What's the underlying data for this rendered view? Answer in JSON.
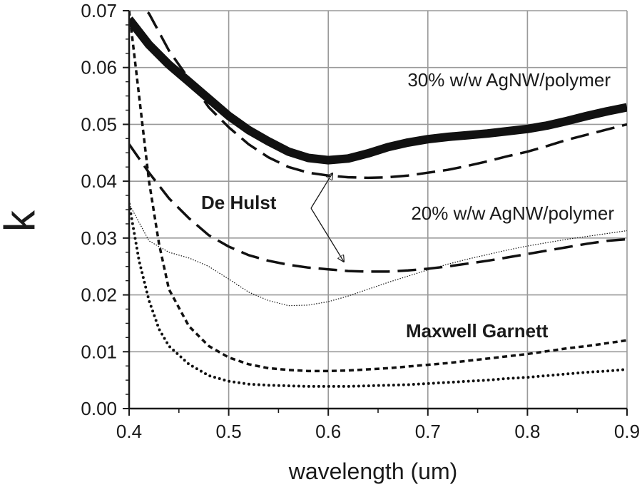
{
  "chart_data": {
    "type": "line",
    "xlabel": "wavelength (um)",
    "ylabel": "k",
    "xlim": [
      0.4,
      0.9
    ],
    "ylim": [
      0.0,
      0.07
    ],
    "grid": true,
    "x_ticks": [
      "0.4",
      "0.5",
      "0.6",
      "0.7",
      "0.8",
      "0.9"
    ],
    "y_ticks": [
      "0.00",
      "0.01",
      "0.02",
      "0.03",
      "0.04",
      "0.05",
      "0.06",
      "0.07"
    ],
    "annotations": {
      "label_30": "30% w/w AgNW/polymer",
      "label_20": "20% w/w AgNW/polymer",
      "label_dehulst": "De Hulst",
      "label_mg": "Maxwell Garnett"
    },
    "series": [
      {
        "style": "thick-square-markers",
        "x": [
          0.4,
          0.42,
          0.44,
          0.46,
          0.48,
          0.5,
          0.52,
          0.54,
          0.56,
          0.58,
          0.6,
          0.62,
          0.64,
          0.66,
          0.68,
          0.7,
          0.72,
          0.74,
          0.76,
          0.78,
          0.8,
          0.82,
          0.84,
          0.86,
          0.88,
          0.9
        ],
        "y": [
          0.0685,
          0.064,
          0.0605,
          0.0575,
          0.0545,
          0.0515,
          0.049,
          0.047,
          0.0452,
          0.0441,
          0.0437,
          0.044,
          0.0449,
          0.046,
          0.0468,
          0.0474,
          0.0478,
          0.0481,
          0.0484,
          0.0488,
          0.0492,
          0.0498,
          0.0506,
          0.0515,
          0.0523,
          0.053
        ]
      },
      {
        "style": "long-dash",
        "x": [
          0.4,
          0.42,
          0.44,
          0.46,
          0.48,
          0.5,
          0.52,
          0.54,
          0.56,
          0.58,
          0.6,
          0.62,
          0.64,
          0.66,
          0.68,
          0.7,
          0.72,
          0.74,
          0.76,
          0.78,
          0.8,
          0.82,
          0.84,
          0.86,
          0.88,
          0.9
        ],
        "y": [
          0.073,
          0.0695,
          0.063,
          0.058,
          0.053,
          0.0495,
          0.0465,
          0.0442,
          0.0425,
          0.0415,
          0.041,
          0.0407,
          0.0406,
          0.0407,
          0.041,
          0.0415,
          0.042,
          0.0427,
          0.0435,
          0.0444,
          0.0452,
          0.0462,
          0.0473,
          0.0482,
          0.0491,
          0.05
        ]
      },
      {
        "style": "long-dash",
        "x": [
          0.4,
          0.42,
          0.44,
          0.46,
          0.48,
          0.5,
          0.52,
          0.54,
          0.56,
          0.58,
          0.6,
          0.62,
          0.64,
          0.66,
          0.68,
          0.7,
          0.72,
          0.74,
          0.76,
          0.78,
          0.8,
          0.82,
          0.84,
          0.86,
          0.88,
          0.9
        ],
        "y": [
          0.0465,
          0.0415,
          0.037,
          0.0335,
          0.0305,
          0.0285,
          0.027,
          0.026,
          0.0253,
          0.0248,
          0.0245,
          0.0242,
          0.0241,
          0.0241,
          0.0243,
          0.0246,
          0.025,
          0.0255,
          0.026,
          0.0266,
          0.0272,
          0.0278,
          0.0284,
          0.029,
          0.0295,
          0.0298
        ]
      },
      {
        "style": "thin-dotted",
        "x": [
          0.4,
          0.42,
          0.44,
          0.46,
          0.48,
          0.5,
          0.52,
          0.54,
          0.56,
          0.58,
          0.6,
          0.62,
          0.64,
          0.66,
          0.68,
          0.7,
          0.72,
          0.74,
          0.76,
          0.78,
          0.8,
          0.82,
          0.84,
          0.86,
          0.88,
          0.9
        ],
        "y": [
          0.036,
          0.0295,
          0.0275,
          0.0265,
          0.025,
          0.0228,
          0.0205,
          0.019,
          0.0181,
          0.0182,
          0.0188,
          0.0198,
          0.021,
          0.0222,
          0.0233,
          0.0244,
          0.0254,
          0.0263,
          0.0271,
          0.0279,
          0.0286,
          0.0292,
          0.0298,
          0.0303,
          0.0308,
          0.0313
        ]
      },
      {
        "style": "short-dash",
        "x": [
          0.4,
          0.41,
          0.42,
          0.43,
          0.44,
          0.46,
          0.48,
          0.5,
          0.52,
          0.54,
          0.56,
          0.58,
          0.6,
          0.62,
          0.64,
          0.66,
          0.68,
          0.7,
          0.72,
          0.74,
          0.76,
          0.78,
          0.8,
          0.82,
          0.84,
          0.86,
          0.88,
          0.9
        ],
        "y": [
          0.07,
          0.055,
          0.04,
          0.029,
          0.021,
          0.0145,
          0.011,
          0.009,
          0.0078,
          0.0071,
          0.0068,
          0.0066,
          0.0066,
          0.0067,
          0.0069,
          0.0071,
          0.0074,
          0.0077,
          0.008,
          0.0084,
          0.0088,
          0.0092,
          0.0096,
          0.0101,
          0.0106,
          0.011,
          0.0115,
          0.012
        ]
      },
      {
        "style": "round-dots",
        "x": [
          0.4,
          0.41,
          0.42,
          0.43,
          0.44,
          0.46,
          0.48,
          0.5,
          0.52,
          0.54,
          0.56,
          0.58,
          0.6,
          0.62,
          0.64,
          0.66,
          0.68,
          0.7,
          0.72,
          0.74,
          0.76,
          0.78,
          0.8,
          0.82,
          0.84,
          0.86,
          0.88,
          0.9
        ],
        "y": [
          0.036,
          0.026,
          0.019,
          0.014,
          0.011,
          0.0078,
          0.0058,
          0.0048,
          0.0043,
          0.0041,
          0.004,
          0.0039,
          0.0039,
          0.0039,
          0.004,
          0.0041,
          0.0042,
          0.0044,
          0.0046,
          0.0048,
          0.005,
          0.0053,
          0.0055,
          0.0058,
          0.0061,
          0.0064,
          0.0066,
          0.0069
        ]
      }
    ]
  }
}
